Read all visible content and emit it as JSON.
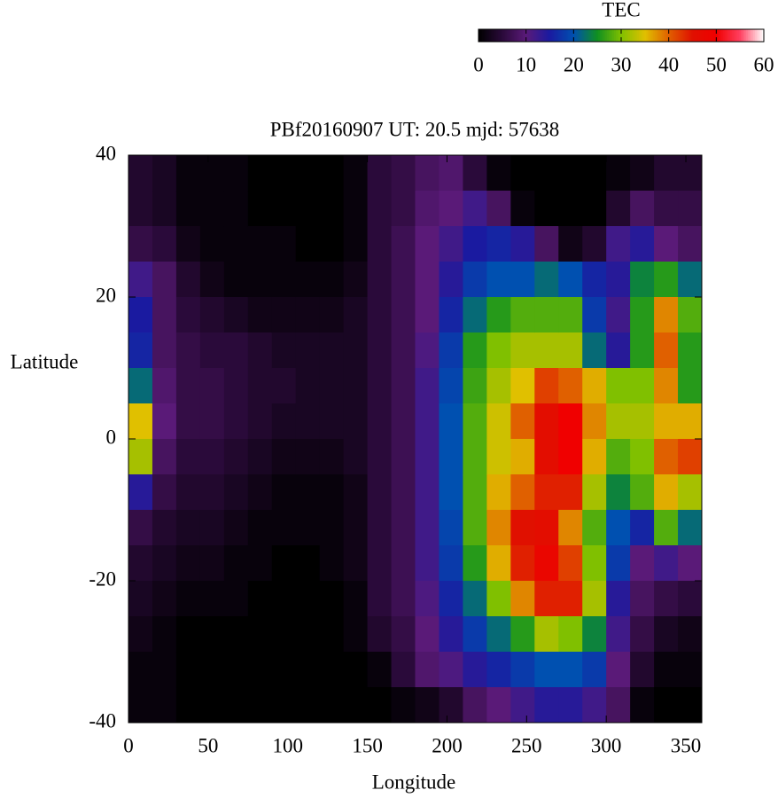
{
  "chart_data": {
    "type": "heatmap",
    "title": "PBf20160907  UT: 20.5  mjd: 57638",
    "xlabel": "Longitude",
    "ylabel": "Latitude",
    "colorbar_label": "TEC",
    "x": [
      7.5,
      22.5,
      37.5,
      52.5,
      67.5,
      82.5,
      97.5,
      112.5,
      127.5,
      142.5,
      157.5,
      172.5,
      187.5,
      202.5,
      217.5,
      232.5,
      247.5,
      262.5,
      277.5,
      292.5,
      307.5,
      322.5,
      337.5,
      352.5
    ],
    "y": [
      37.5,
      32.5,
      27.5,
      22.5,
      17.5,
      12.5,
      7.5,
      2.5,
      -2.5,
      -7.5,
      -12.5,
      -17.5,
      -22.5,
      -27.5,
      -32.5,
      -37.5
    ],
    "z": [
      [
        4,
        4,
        6,
        12,
        15,
        16,
        22,
        35,
        32,
        14,
        6,
        4,
        3,
        2,
        1,
        1
      ],
      [
        3,
        3,
        5,
        8,
        8,
        8,
        9,
        10,
        8,
        6,
        4,
        3,
        2,
        1,
        1,
        1
      ],
      [
        1,
        1,
        2,
        4,
        5,
        6,
        6,
        6,
        5,
        4,
        3,
        2,
        1,
        0,
        0,
        0
      ],
      [
        1,
        1,
        1,
        2,
        4,
        5,
        6,
        6,
        5,
        4,
        3,
        2,
        1,
        0,
        0,
        0
      ],
      [
        1,
        1,
        1,
        1,
        3,
        5,
        5,
        5,
        4,
        3,
        2,
        1,
        1,
        0,
        0,
        0
      ],
      [
        0,
        0,
        1,
        1,
        2,
        4,
        4,
        4,
        3,
        2,
        1,
        1,
        0,
        0,
        0,
        0
      ],
      [
        0,
        0,
        1,
        1,
        2,
        3,
        4,
        3,
        2,
        1,
        1,
        0,
        0,
        0,
        0,
        0
      ],
      [
        0,
        0,
        0,
        1,
        2,
        3,
        3,
        3,
        2,
        1,
        1,
        0,
        0,
        0,
        0,
        0
      ],
      [
        0,
        0,
        0,
        1,
        2,
        3,
        3,
        3,
        2,
        1,
        1,
        1,
        0,
        0,
        0,
        0
      ],
      [
        1,
        1,
        1,
        2,
        3,
        3,
        3,
        3,
        3,
        2,
        2,
        2,
        1,
        1,
        0,
        0
      ],
      [
        5,
        5,
        5,
        5,
        5,
        5,
        5,
        5,
        5,
        5,
        5,
        5,
        5,
        4,
        1,
        0
      ],
      [
        6,
        6,
        7,
        7,
        7,
        7,
        7,
        7,
        7,
        7,
        7,
        7,
        7,
        6,
        5,
        1
      ],
      [
        8,
        9,
        10,
        10,
        10,
        11,
        12,
        12,
        12,
        12,
        12,
        12,
        11,
        10,
        9,
        2
      ],
      [
        9,
        10,
        12,
        14,
        16,
        18,
        19,
        20,
        20,
        20,
        19,
        18,
        16,
        14,
        11,
        4
      ],
      [
        5,
        12,
        15,
        18,
        22,
        26,
        27,
        28,
        28,
        28,
        28,
        26,
        22,
        18,
        14,
        8
      ],
      [
        1,
        8,
        16,
        20,
        26,
        30,
        32,
        34,
        34,
        36,
        38,
        36,
        30,
        22,
        16,
        10
      ],
      [
        0,
        1,
        14,
        20,
        28,
        32,
        35,
        40,
        36,
        40,
        45,
        44,
        38,
        26,
        18,
        12
      ],
      [
        0,
        0,
        8,
        22,
        28,
        32,
        42,
        46,
        46,
        44,
        46,
        48,
        44,
        32,
        20,
        14
      ],
      [
        0,
        0,
        2,
        20,
        28,
        32,
        40,
        50,
        50,
        44,
        38,
        42,
        44,
        30,
        20,
        14
      ],
      [
        0,
        0,
        4,
        16,
        18,
        22,
        36,
        38,
        36,
        32,
        28,
        30,
        32,
        24,
        18,
        12
      ],
      [
        1,
        4,
        12,
        14,
        12,
        14,
        30,
        32,
        28,
        24,
        20,
        18,
        14,
        12,
        10,
        8
      ],
      [
        2,
        8,
        14,
        24,
        26,
        26,
        30,
        32,
        30,
        28,
        16,
        10,
        8,
        6,
        4,
        1
      ],
      [
        4,
        6,
        10,
        26,
        38,
        40,
        38,
        36,
        40,
        36,
        28,
        12,
        6,
        3,
        1,
        0
      ],
      [
        4,
        6,
        8,
        22,
        28,
        26,
        26,
        36,
        42,
        32,
        22,
        10,
        5,
        2,
        1,
        0
      ]
    ],
    "xlim": [
      0,
      360
    ],
    "xticks": [
      0,
      50,
      100,
      150,
      200,
      250,
      300,
      350
    ],
    "ylim": [
      -40,
      40
    ],
    "yticks": [
      -40,
      -20,
      0,
      20,
      40
    ],
    "clim": [
      0,
      60
    ],
    "cticks": [
      0,
      10,
      20,
      30,
      40,
      50,
      60
    ],
    "colorscale": [
      "#000000",
      "#2a0a3a",
      "#5a1a78",
      "#1a1aa0",
      "#0050b0",
      "#109020",
      "#80c000",
      "#e0c000",
      "#e06000",
      "#e01000",
      "#f00000",
      "#ff4060",
      "#ffffff"
    ]
  }
}
